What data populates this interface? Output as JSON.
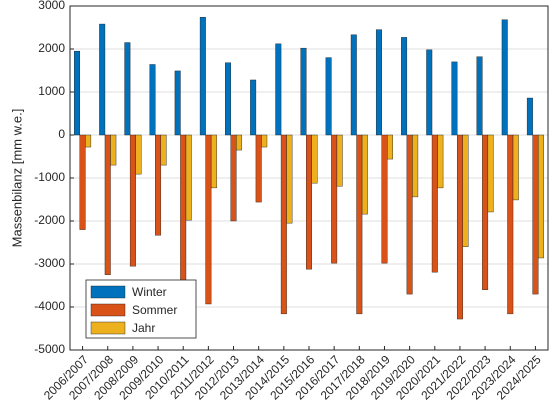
{
  "chart_data": {
    "type": "bar",
    "ylabel": "Massenbilanz [mm w.e.]",
    "categories": [
      "2006/2007",
      "2007/2008",
      "2008/2009",
      "2009/2010",
      "2010/2011",
      "2011/2012",
      "2012/2013",
      "2013/2014",
      "2014/2015",
      "2015/2016",
      "2016/2017",
      "2017/2018",
      "2018/2019",
      "2019/2020",
      "2020/2021",
      "2021/2022",
      "2022/2023",
      "2023/2024",
      "2024/2025"
    ],
    "series": [
      {
        "name": "Winter",
        "color": "#0072BD",
        "values": [
          1950,
          2580,
          2150,
          1640,
          1490,
          2740,
          1680,
          1280,
          2120,
          2020,
          1800,
          2330,
          2450,
          2270,
          1980,
          1700,
          1820,
          2680,
          860
        ]
      },
      {
        "name": "Sommer",
        "color": "#D95319",
        "values": [
          -2200,
          -3250,
          -3050,
          -2330,
          -3550,
          -3930,
          -2000,
          -1560,
          -4160,
          -3120,
          -2980,
          -4160,
          -2980,
          -3700,
          -3190,
          -4280,
          -3600,
          -4160,
          -3700
        ]
      },
      {
        "name": "Jahr",
        "color": "#EDB120",
        "values": [
          -280,
          -700,
          -910,
          -700,
          -1980,
          -1230,
          -350,
          -280,
          -2050,
          -1120,
          -1190,
          -1840,
          -560,
          -1440,
          -1230,
          -2600,
          -1790,
          -1510,
          -2860
        ]
      }
    ],
    "ylim": [
      -5000,
      3000
    ],
    "yticks": [
      -5000,
      -4000,
      -3000,
      -2000,
      -1000,
      0,
      1000,
      2000,
      3000
    ],
    "grid": true,
    "legend": "lower left"
  }
}
